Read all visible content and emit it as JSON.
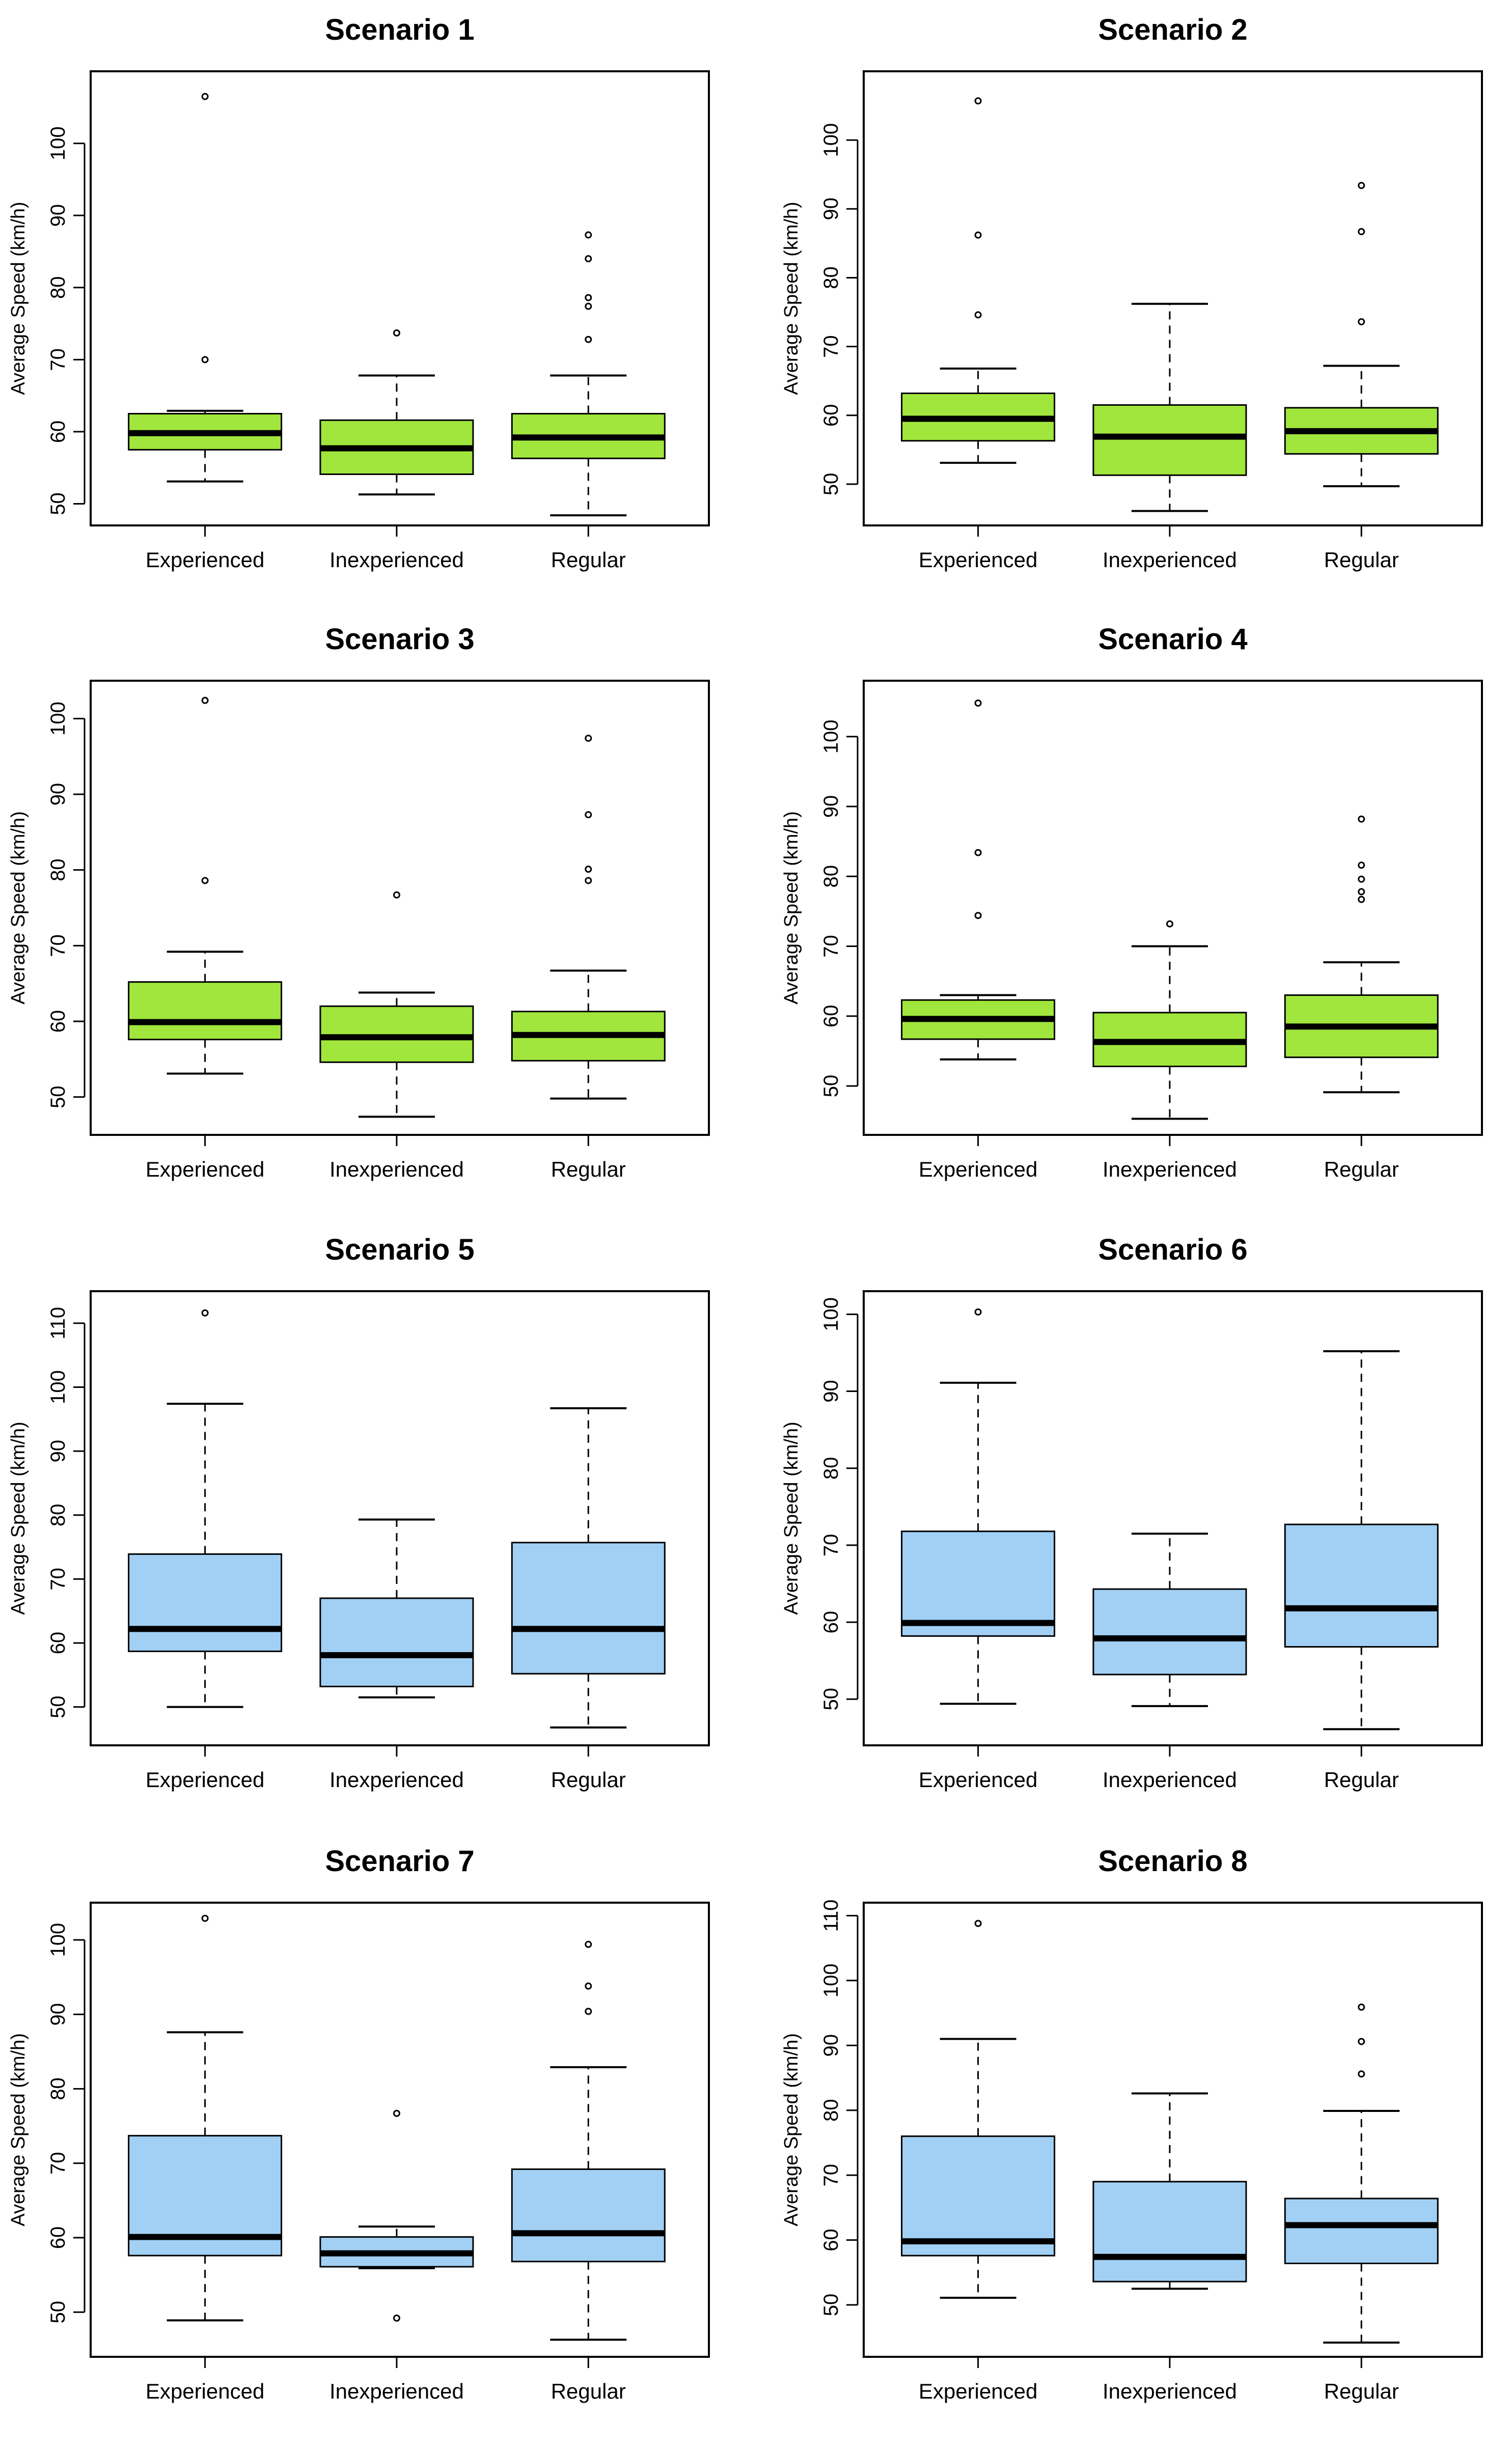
{
  "colors": {
    "green": "#a1e63c",
    "blue": "#a2d0f4",
    "ink": "#000000"
  },
  "chart_data": [
    {
      "type": "boxplot",
      "title": "Scenario 1",
      "ylabel": "Average Speed (km/h)",
      "color": "green",
      "ylim": [
        47,
        110
      ],
      "yticks": [
        50,
        60,
        70,
        80,
        90,
        100
      ],
      "categories": [
        "Experienced",
        "Inexperienced",
        "Regular"
      ],
      "boxes": [
        {
          "min": 53.1,
          "q1": 57.5,
          "median": 59.8,
          "q3": 62.5,
          "max": 62.9,
          "outliers": [
            70,
            106.5
          ]
        },
        {
          "min": 51.3,
          "q1": 54.1,
          "median": 57.7,
          "q3": 61.6,
          "max": 67.8,
          "outliers": [
            73.7
          ]
        },
        {
          "min": 48.4,
          "q1": 56.3,
          "median": 59.2,
          "q3": 62.5,
          "max": 67.8,
          "outliers": [
            72.8,
            77.4,
            78.6,
            84,
            87.3
          ]
        }
      ]
    },
    {
      "type": "boxplot",
      "title": "Scenario 2",
      "ylabel": "Average Speed (km/h)",
      "color": "green",
      "ylim": [
        44,
        110
      ],
      "yticks": [
        50,
        60,
        70,
        80,
        90,
        100
      ],
      "categories": [
        "Experienced",
        "Inexperienced",
        "Regular"
      ],
      "boxes": [
        {
          "min": 53.1,
          "q1": 56.3,
          "median": 59.5,
          "q3": 63.2,
          "max": 66.8,
          "outliers": [
            74.6,
            86.2,
            105.7
          ]
        },
        {
          "min": 46.1,
          "q1": 51.3,
          "median": 56.9,
          "q3": 61.5,
          "max": 76.2,
          "outliers": []
        },
        {
          "min": 49.7,
          "q1": 54.4,
          "median": 57.7,
          "q3": 61.1,
          "max": 67.2,
          "outliers": [
            73.6,
            86.7,
            93.4
          ]
        }
      ]
    },
    {
      "type": "boxplot",
      "title": "Scenario 3",
      "ylabel": "Average Speed (km/h)",
      "color": "green",
      "ylim": [
        45,
        105
      ],
      "yticks": [
        50,
        60,
        70,
        80,
        90,
        100
      ],
      "categories": [
        "Experienced",
        "Inexperienced",
        "Regular"
      ],
      "boxes": [
        {
          "min": 53.1,
          "q1": 57.6,
          "median": 59.9,
          "q3": 65.2,
          "max": 69.2,
          "outliers": [
            78.6,
            102.4
          ]
        },
        {
          "min": 47.4,
          "q1": 54.6,
          "median": 57.9,
          "q3": 62,
          "max": 63.8,
          "outliers": [
            76.7
          ]
        },
        {
          "min": 49.8,
          "q1": 54.8,
          "median": 58.2,
          "q3": 61.3,
          "max": 66.7,
          "outliers": [
            78.6,
            80.1,
            87.3,
            97.4
          ]
        }
      ]
    },
    {
      "type": "boxplot",
      "title": "Scenario 4",
      "ylabel": "Average Speed (km/h)",
      "color": "green",
      "ylim": [
        43,
        108
      ],
      "yticks": [
        50,
        60,
        70,
        80,
        90,
        100
      ],
      "categories": [
        "Experienced",
        "Inexperienced",
        "Regular"
      ],
      "boxes": [
        {
          "min": 53.8,
          "q1": 56.7,
          "median": 59.6,
          "q3": 62.3,
          "max": 63,
          "outliers": [
            74.4,
            83.4,
            104.8
          ]
        },
        {
          "min": 45.3,
          "q1": 52.8,
          "median": 56.3,
          "q3": 60.5,
          "max": 70,
          "outliers": [
            73.2
          ]
        },
        {
          "min": 49.1,
          "q1": 54.1,
          "median": 58.5,
          "q3": 63,
          "max": 67.7,
          "outliers": [
            76.7,
            77.8,
            79.6,
            81.6,
            88.2
          ]
        }
      ]
    },
    {
      "type": "boxplot",
      "title": "Scenario 5",
      "ylabel": "Average Speed (km/h)",
      "color": "blue",
      "ylim": [
        44,
        115
      ],
      "yticks": [
        50,
        60,
        70,
        80,
        90,
        100,
        110
      ],
      "categories": [
        "Experienced",
        "Inexperienced",
        "Regular"
      ],
      "boxes": [
        {
          "min": 50,
          "q1": 58.7,
          "median": 62.2,
          "q3": 73.9,
          "max": 97.4,
          "outliers": [
            111.6
          ]
        },
        {
          "min": 51.5,
          "q1": 53.2,
          "median": 58.1,
          "q3": 67,
          "max": 79.3,
          "outliers": []
        },
        {
          "min": 46.8,
          "q1": 55.2,
          "median": 62.2,
          "q3": 75.7,
          "max": 96.7,
          "outliers": []
        }
      ]
    },
    {
      "type": "boxplot",
      "title": "Scenario 6",
      "ylabel": "Average Speed (km/h)",
      "color": "blue",
      "ylim": [
        44,
        103
      ],
      "yticks": [
        50,
        60,
        70,
        80,
        90,
        100
      ],
      "categories": [
        "Experienced",
        "Inexperienced",
        "Regular"
      ],
      "boxes": [
        {
          "min": 49.4,
          "q1": 58.2,
          "median": 59.9,
          "q3": 71.8,
          "max": 91.1,
          "outliers": [
            100.3
          ]
        },
        {
          "min": 49.1,
          "q1": 53.2,
          "median": 57.9,
          "q3": 64.3,
          "max": 71.5,
          "outliers": []
        },
        {
          "min": 46.1,
          "q1": 56.8,
          "median": 61.8,
          "q3": 72.7,
          "max": 95.2,
          "outliers": []
        }
      ]
    },
    {
      "type": "boxplot",
      "title": "Scenario 7",
      "ylabel": "Average Speed (km/h)",
      "color": "blue",
      "ylim": [
        44,
        105
      ],
      "yticks": [
        50,
        60,
        70,
        80,
        90,
        100
      ],
      "categories": [
        "Experienced",
        "Inexperienced",
        "Regular"
      ],
      "boxes": [
        {
          "min": 48.9,
          "q1": 57.6,
          "median": 60.1,
          "q3": 73.7,
          "max": 87.6,
          "outliers": [
            102.9
          ]
        },
        {
          "min": 55.9,
          "q1": 56.1,
          "median": 57.9,
          "q3": 60.1,
          "max": 61.5,
          "outliers": [
            49.2,
            76.7
          ]
        },
        {
          "min": 46.3,
          "q1": 56.8,
          "median": 60.6,
          "q3": 69.2,
          "max": 82.9,
          "outliers": [
            90.4,
            93.8,
            99.4
          ]
        }
      ]
    },
    {
      "type": "boxplot",
      "title": "Scenario 8",
      "ylabel": "Average Speed (km/h)",
      "color": "blue",
      "ylim": [
        42,
        112
      ],
      "yticks": [
        50,
        60,
        70,
        80,
        90,
        100,
        110
      ],
      "categories": [
        "Experienced",
        "Inexperienced",
        "Regular"
      ],
      "boxes": [
        {
          "min": 51.1,
          "q1": 57.6,
          "median": 59.8,
          "q3": 76,
          "max": 91,
          "outliers": [
            108.8
          ]
        },
        {
          "min": 52.5,
          "q1": 53.6,
          "median": 57.4,
          "q3": 69,
          "max": 82.6,
          "outliers": []
        },
        {
          "min": 44.2,
          "q1": 56.4,
          "median": 62.3,
          "q3": 66.4,
          "max": 79.9,
          "outliers": [
            85.6,
            90.6,
            95.9
          ]
        }
      ]
    }
  ]
}
